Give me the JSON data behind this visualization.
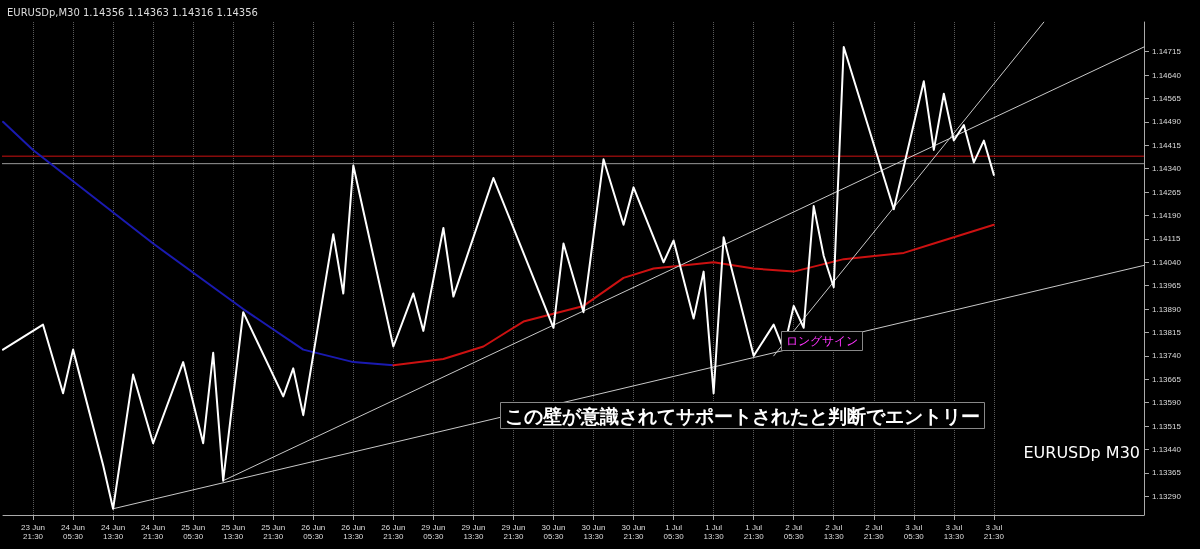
{
  "chart_data": {
    "type": "line",
    "title": "EURUSDp,M30 1.14356 1.14363 1.14316 1.14356",
    "categories": [
      null,
      null,
      null,
      "23 Jun 21:30",
      null,
      null,
      null,
      "24 Jun 05:30",
      null,
      null,
      null,
      "24 Jun 13:30",
      null,
      null,
      null,
      "24 Jun 21:30",
      null,
      null,
      null,
      "25 Jun 05:30",
      null,
      null,
      null,
      "25 Jun 13:30",
      null,
      null,
      null,
      "25 Jun 21:30",
      null,
      null,
      null,
      "26 Jun 05:30",
      null,
      null,
      null,
      "26 Jun 13:30",
      null,
      null,
      null,
      "26 Jun 21:30",
      null,
      null,
      null,
      "29 Jun 05:30",
      null,
      null,
      null,
      "29 Jun 13:30",
      null,
      null,
      null,
      "29 Jun 21:30",
      null,
      null,
      null,
      "30 Jun 05:30",
      null,
      null,
      null,
      "30 Jun 13:30",
      null,
      null,
      null,
      "30 Jun 21:30",
      null,
      null,
      null,
      "1 Jul 05:30",
      null,
      null,
      null,
      "1 Jul 13:30",
      null,
      null,
      null,
      "1 Jul 21:30",
      null,
      null,
      null,
      "2 Jul 05:30",
      null,
      null,
      null,
      "2 Jul 13:30",
      null,
      null,
      null,
      "2 Jul 21:30",
      null,
      null,
      null,
      "3 Jul 05:30",
      null,
      null,
      null,
      "3 Jul 13:30",
      null,
      null,
      null,
      "3 Jul 21:30",
      null,
      null,
      null,
      null,
      null,
      null,
      null,
      null,
      null,
      null,
      null,
      null,
      null,
      null,
      null
    ],
    "ylim": [
      1.1323,
      1.1481
    ],
    "yticks": [
      {
        "value": 1.1329,
        "label": "1.13290"
      },
      {
        "value": 1.13365,
        "label": "1.13365"
      },
      {
        "value": 1.1344,
        "label": "1.13440"
      },
      {
        "value": 1.13515,
        "label": "1.13515"
      },
      {
        "value": 1.1359,
        "label": "1.13590"
      },
      {
        "value": 1.13665,
        "label": "1.13665"
      },
      {
        "value": 1.1374,
        "label": "1.13740"
      },
      {
        "value": 1.13815,
        "label": "1.13815"
      },
      {
        "value": 1.1389,
        "label": "1.13890"
      },
      {
        "value": 1.13965,
        "label": "1.13965"
      },
      {
        "value": 1.1404,
        "label": "1.14040"
      },
      {
        "value": 1.14115,
        "label": "1.14115"
      },
      {
        "value": 1.1419,
        "label": "1.14190"
      },
      {
        "value": 1.14265,
        "label": "1.14265"
      },
      {
        "value": 1.1434,
        "label": "1.14340"
      },
      {
        "value": 1.14415,
        "label": "1.14415"
      },
      {
        "value": 1.1449,
        "label": "1.14490"
      },
      {
        "value": 1.14565,
        "label": "1.14565"
      },
      {
        "value": 1.1464,
        "label": "1.14640"
      },
      {
        "value": 1.14715,
        "label": "1.14715"
      }
    ],
    "grid": "x",
    "marker": "none",
    "series": [
      {
        "color": "#ffffff",
        "values": [
          1.1376,
          null,
          null,
          null,
          1.1384,
          null,
          1.1362,
          1.1376,
          null,
          null,
          1.1339,
          1.1325,
          null,
          1.1368,
          null,
          1.1346,
          null,
          null,
          1.1372,
          null,
          1.1346,
          1.1375,
          1.1334,
          null,
          1.1388,
          null,
          null,
          null,
          1.1361,
          1.137,
          1.1355,
          null,
          null,
          1.1413,
          1.1394,
          1.1435,
          null,
          null,
          null,
          1.1377,
          null,
          1.1394,
          1.1382,
          null,
          1.1415,
          1.1393,
          null,
          null,
          null,
          1.1431,
          null,
          null,
          null,
          null,
          null,
          1.1383,
          1.141,
          null,
          1.1388,
          null,
          1.1437,
          null,
          1.1416,
          1.1428,
          null,
          null,
          1.1404,
          1.1411,
          null,
          1.1386,
          1.1401,
          1.1362,
          1.1412,
          null,
          null,
          1.1374,
          null,
          1.1384,
          1.1376,
          1.139,
          1.1383,
          1.1422,
          1.1406,
          1.1396,
          1.1473,
          null,
          null,
          null,
          null,
          1.1421,
          null,
          null,
          1.1462,
          1.144,
          1.1458,
          1.1443,
          1.1448,
          1.1436,
          1.1443,
          1.1432,
          null,
          null,
          null,
          null,
          null,
          null,
          null,
          null,
          null,
          null,
          null,
          null,
          null,
          null,
          null
        ]
      },
      {
        "color": "#1a1ab0",
        "values": [
          1.1449,
          null,
          null,
          1.144,
          null,
          null,
          null,
          null,
          null,
          null,
          null,
          null,
          null,
          null,
          null,
          1.141,
          null,
          null,
          null,
          null,
          null,
          null,
          null,
          null,
          1.1389,
          null,
          null,
          null,
          null,
          null,
          1.1376,
          null,
          null,
          null,
          null,
          1.1372,
          null,
          null,
          null,
          1.1371,
          null,
          null,
          null,
          null,
          null,
          null,
          null,
          null,
          null,
          null,
          null,
          null,
          null,
          null,
          null,
          null,
          null,
          null,
          null,
          null,
          null,
          null,
          null,
          null,
          null,
          null,
          null,
          null,
          null,
          null,
          null,
          null,
          null,
          null,
          null,
          null,
          null,
          null,
          null,
          null,
          null,
          null,
          null,
          null,
          null,
          null,
          null,
          null,
          null,
          null,
          null,
          null,
          null,
          null,
          null,
          null,
          null,
          null,
          null,
          null,
          null,
          null,
          null,
          null,
          null,
          null,
          null,
          null,
          null,
          null,
          null,
          null,
          null,
          null,
          null
        ]
      },
      {
        "color": "#cc1111",
        "values": [
          null,
          null,
          null,
          null,
          null,
          null,
          null,
          null,
          null,
          null,
          null,
          null,
          null,
          null,
          null,
          null,
          null,
          null,
          null,
          null,
          null,
          null,
          null,
          null,
          null,
          null,
          null,
          null,
          null,
          null,
          null,
          null,
          null,
          null,
          null,
          null,
          null,
          null,
          null,
          1.1371,
          null,
          null,
          null,
          null,
          1.1373,
          null,
          null,
          null,
          1.1377,
          null,
          null,
          null,
          1.1385,
          null,
          null,
          null,
          null,
          null,
          1.139,
          null,
          null,
          null,
          1.1399,
          null,
          null,
          1.1402,
          null,
          null,
          null,
          null,
          null,
          1.1404,
          null,
          null,
          null,
          1.1402,
          null,
          null,
          null,
          1.1401,
          null,
          null,
          null,
          null,
          1.1405,
          null,
          null,
          null,
          null,
          null,
          1.1407,
          null,
          null,
          1.141,
          null,
          null,
          null,
          null,
          null,
          1.1416,
          null,
          null,
          null,
          null,
          null,
          null,
          null,
          null,
          null,
          null,
          null,
          null,
          null,
          null,
          null
        ]
      },
      {
        "color": "#c8c8c8",
        "values": [
          null,
          null,
          null,
          null,
          null,
          null,
          null,
          null,
          null,
          null,
          null,
          1.1325,
          null,
          null,
          null,
          null,
          null,
          null,
          null,
          null,
          null,
          null,
          null,
          null,
          null,
          null,
          null,
          null,
          null,
          null,
          null,
          null,
          null,
          null,
          null,
          null,
          null,
          null,
          null,
          null,
          null,
          null,
          null,
          null,
          null,
          null,
          null,
          null,
          null,
          null,
          null,
          null,
          null,
          null,
          null,
          null,
          null,
          null,
          null,
          null,
          null,
          null,
          null,
          null,
          null,
          null,
          null,
          null,
          null,
          null,
          null,
          null,
          null,
          null,
          null,
          null,
          null,
          null,
          null,
          null,
          null,
          null,
          null,
          null,
          null,
          null,
          null,
          null,
          null,
          null,
          null,
          null,
          null,
          null,
          null,
          null,
          null,
          null,
          null,
          null,
          null,
          null,
          null,
          null,
          null,
          null,
          null,
          null,
          null,
          null,
          null,
          null,
          null,
          null,
          1.1403
        ]
      },
      {
        "color": "#c8c8c8",
        "values": [
          null,
          null,
          null,
          null,
          null,
          null,
          null,
          null,
          null,
          null,
          null,
          null,
          null,
          null,
          null,
          null,
          null,
          null,
          null,
          null,
          null,
          null,
          1.1334,
          null,
          null,
          null,
          null,
          null,
          null,
          null,
          null,
          null,
          null,
          null,
          null,
          null,
          null,
          null,
          null,
          null,
          null,
          null,
          null,
          null,
          null,
          null,
          null,
          null,
          null,
          null,
          null,
          null,
          null,
          null,
          null,
          null,
          null,
          null,
          null,
          null,
          null,
          null,
          null,
          null,
          null,
          null,
          null,
          null,
          null,
          null,
          null,
          null,
          null,
          null,
          null,
          null,
          null,
          null,
          null,
          null,
          null,
          null,
          null,
          null,
          null,
          null,
          null,
          null,
          null,
          null,
          null,
          null,
          null,
          null,
          null,
          null,
          null,
          null,
          null,
          null,
          null,
          null,
          null,
          null,
          null,
          null,
          null,
          null,
          null,
          null,
          null,
          null,
          null,
          null,
          1.1473
        ]
      },
      {
        "color": "#c8c8c8",
        "values": [
          null,
          null,
          null,
          null,
          null,
          null,
          null,
          null,
          null,
          null,
          null,
          null,
          null,
          null,
          null,
          null,
          null,
          null,
          null,
          null,
          null,
          null,
          null,
          null,
          null,
          null,
          null,
          null,
          null,
          null,
          null,
          null,
          null,
          null,
          null,
          null,
          null,
          null,
          null,
          null,
          null,
          null,
          null,
          null,
          null,
          null,
          null,
          null,
          null,
          null,
          null,
          null,
          null,
          null,
          null,
          null,
          null,
          null,
          null,
          null,
          null,
          null,
          null,
          null,
          null,
          null,
          null,
          null,
          null,
          null,
          null,
          null,
          null,
          null,
          null,
          null,
          null,
          1.1374,
          null,
          null,
          null,
          null,
          null,
          null,
          null,
          null,
          null,
          null,
          null,
          null,
          null,
          null,
          null,
          null,
          null,
          null,
          null,
          null,
          null,
          null,
          null,
          null,
          null,
          null,
          1.1481,
          null,
          null,
          null,
          null,
          null,
          null,
          null,
          null,
          null,
          null
        ]
      }
    ],
    "ref_lines": [
      {
        "axis": "y",
        "value": 1.1438,
        "color": "#cc1111"
      },
      {
        "axis": "y",
        "value": 1.14356,
        "color": "#9a9a9a"
      }
    ],
    "annotations": [
      "この壁が意識されてサポートされたと判断でエントリー",
      "EURUSDp M30",
      "ロングサイン"
    ]
  }
}
